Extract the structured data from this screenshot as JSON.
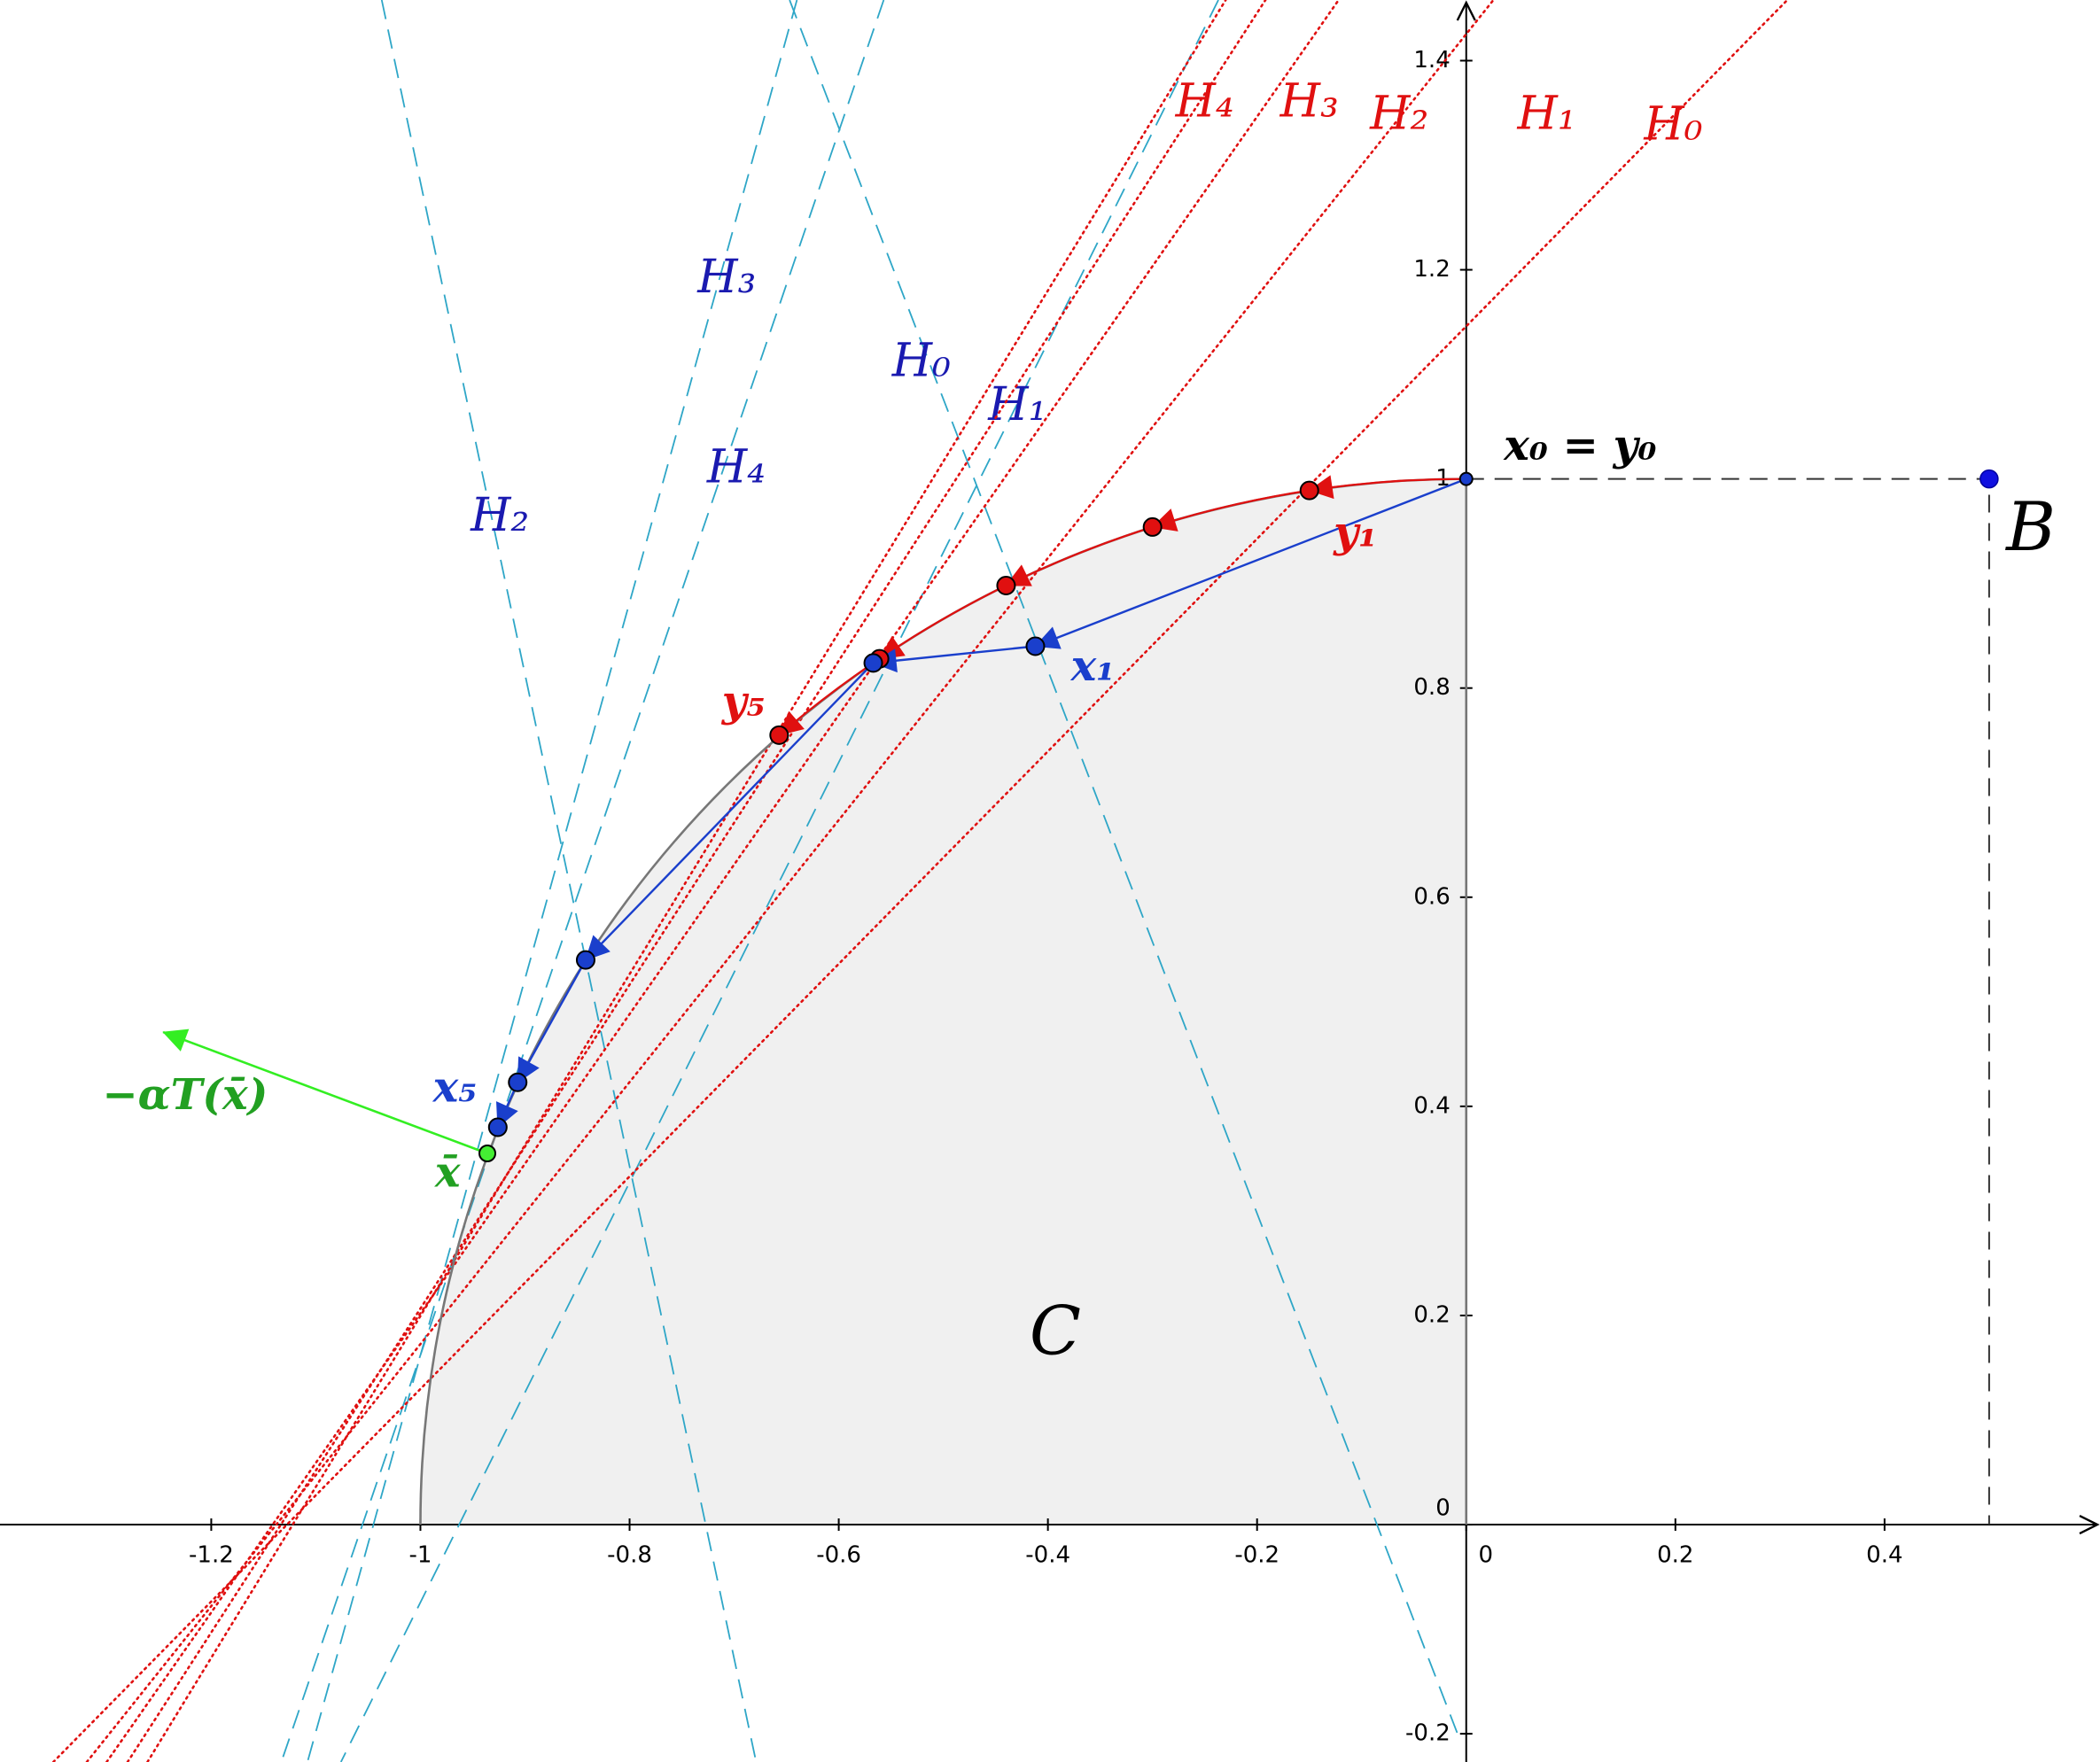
{
  "axes": {
    "xlim": [
      -1.402,
      0.606
    ],
    "ylim": [
      -0.227,
      1.458
    ],
    "xticks": [
      -1.2,
      -1,
      -0.8,
      -0.6,
      -0.4,
      -0.2,
      0,
      0.2,
      0.4
    ],
    "yticks": [
      -0.2,
      0,
      0.2,
      0.4,
      0.6,
      0.8,
      1,
      1.2,
      1.4
    ]
  },
  "region_label": "C",
  "red_lines": [
    {
      "label": "H₀",
      "from": [
        -1.351,
        -0.227
      ],
      "to": [
        0.307,
        1.458
      ]
    },
    {
      "label": "H₁",
      "from": [
        -1.319,
        -0.227
      ],
      "to": [
        0.026,
        1.458
      ]
    },
    {
      "label": "H₂",
      "from": [
        -1.3,
        -0.227
      ],
      "to": [
        -0.122,
        1.458
      ]
    },
    {
      "label": "H₃",
      "from": [
        -1.28,
        -0.227
      ],
      "to": [
        -0.192,
        1.458
      ]
    },
    {
      "label": "H₄",
      "from": [
        -1.261,
        -0.227
      ],
      "to": [
        -0.23,
        1.458
      ]
    }
  ],
  "blue_lines": [
    {
      "label": "H₀",
      "from": [
        -0.647,
        1.458
      ],
      "to": [
        -0.006,
        -0.206
      ]
    },
    {
      "label": "H₁",
      "from": [
        -0.237,
        1.458
      ],
      "to": [
        -1.076,
        -0.227
      ]
    },
    {
      "label": "H₂",
      "from": [
        -1.037,
        1.458
      ],
      "to": [
        -0.679,
        -0.227
      ]
    },
    {
      "label": "H₃",
      "from": [
        -0.64,
        1.458
      ],
      "to": [
        -1.108,
        -0.227
      ]
    },
    {
      "label": "H₄",
      "from": [
        -0.557,
        1.458
      ],
      "to": [
        -1.133,
        -0.227
      ]
    }
  ],
  "points": {
    "x": [
      [
        0,
        1
      ],
      [
        -0.412,
        0.84
      ],
      [
        -0.567,
        0.824
      ],
      [
        -0.842,
        0.54
      ],
      [
        -0.907,
        0.423
      ],
      [
        -0.926,
        0.38
      ]
    ],
    "y": [
      [
        0,
        1
      ],
      [
        -0.15,
        0.989
      ],
      [
        -0.3,
        0.954
      ],
      [
        -0.44,
        0.898
      ],
      [
        -0.561,
        0.828
      ],
      [
        -0.657,
        0.755
      ]
    ],
    "x_bar": [
      -0.936,
      0.355
    ],
    "direction_tip": [
      -1.246,
      0.471
    ],
    "B": [
      0.5,
      1
    ]
  },
  "labels": {
    "x0_y0": "x₀ = y₀",
    "y1": "y₁",
    "y5": "y₅",
    "x1": "x₁",
    "x5": "x₅",
    "x_bar": "x̄",
    "direction": "−αT(x̄)",
    "B": "B"
  }
}
